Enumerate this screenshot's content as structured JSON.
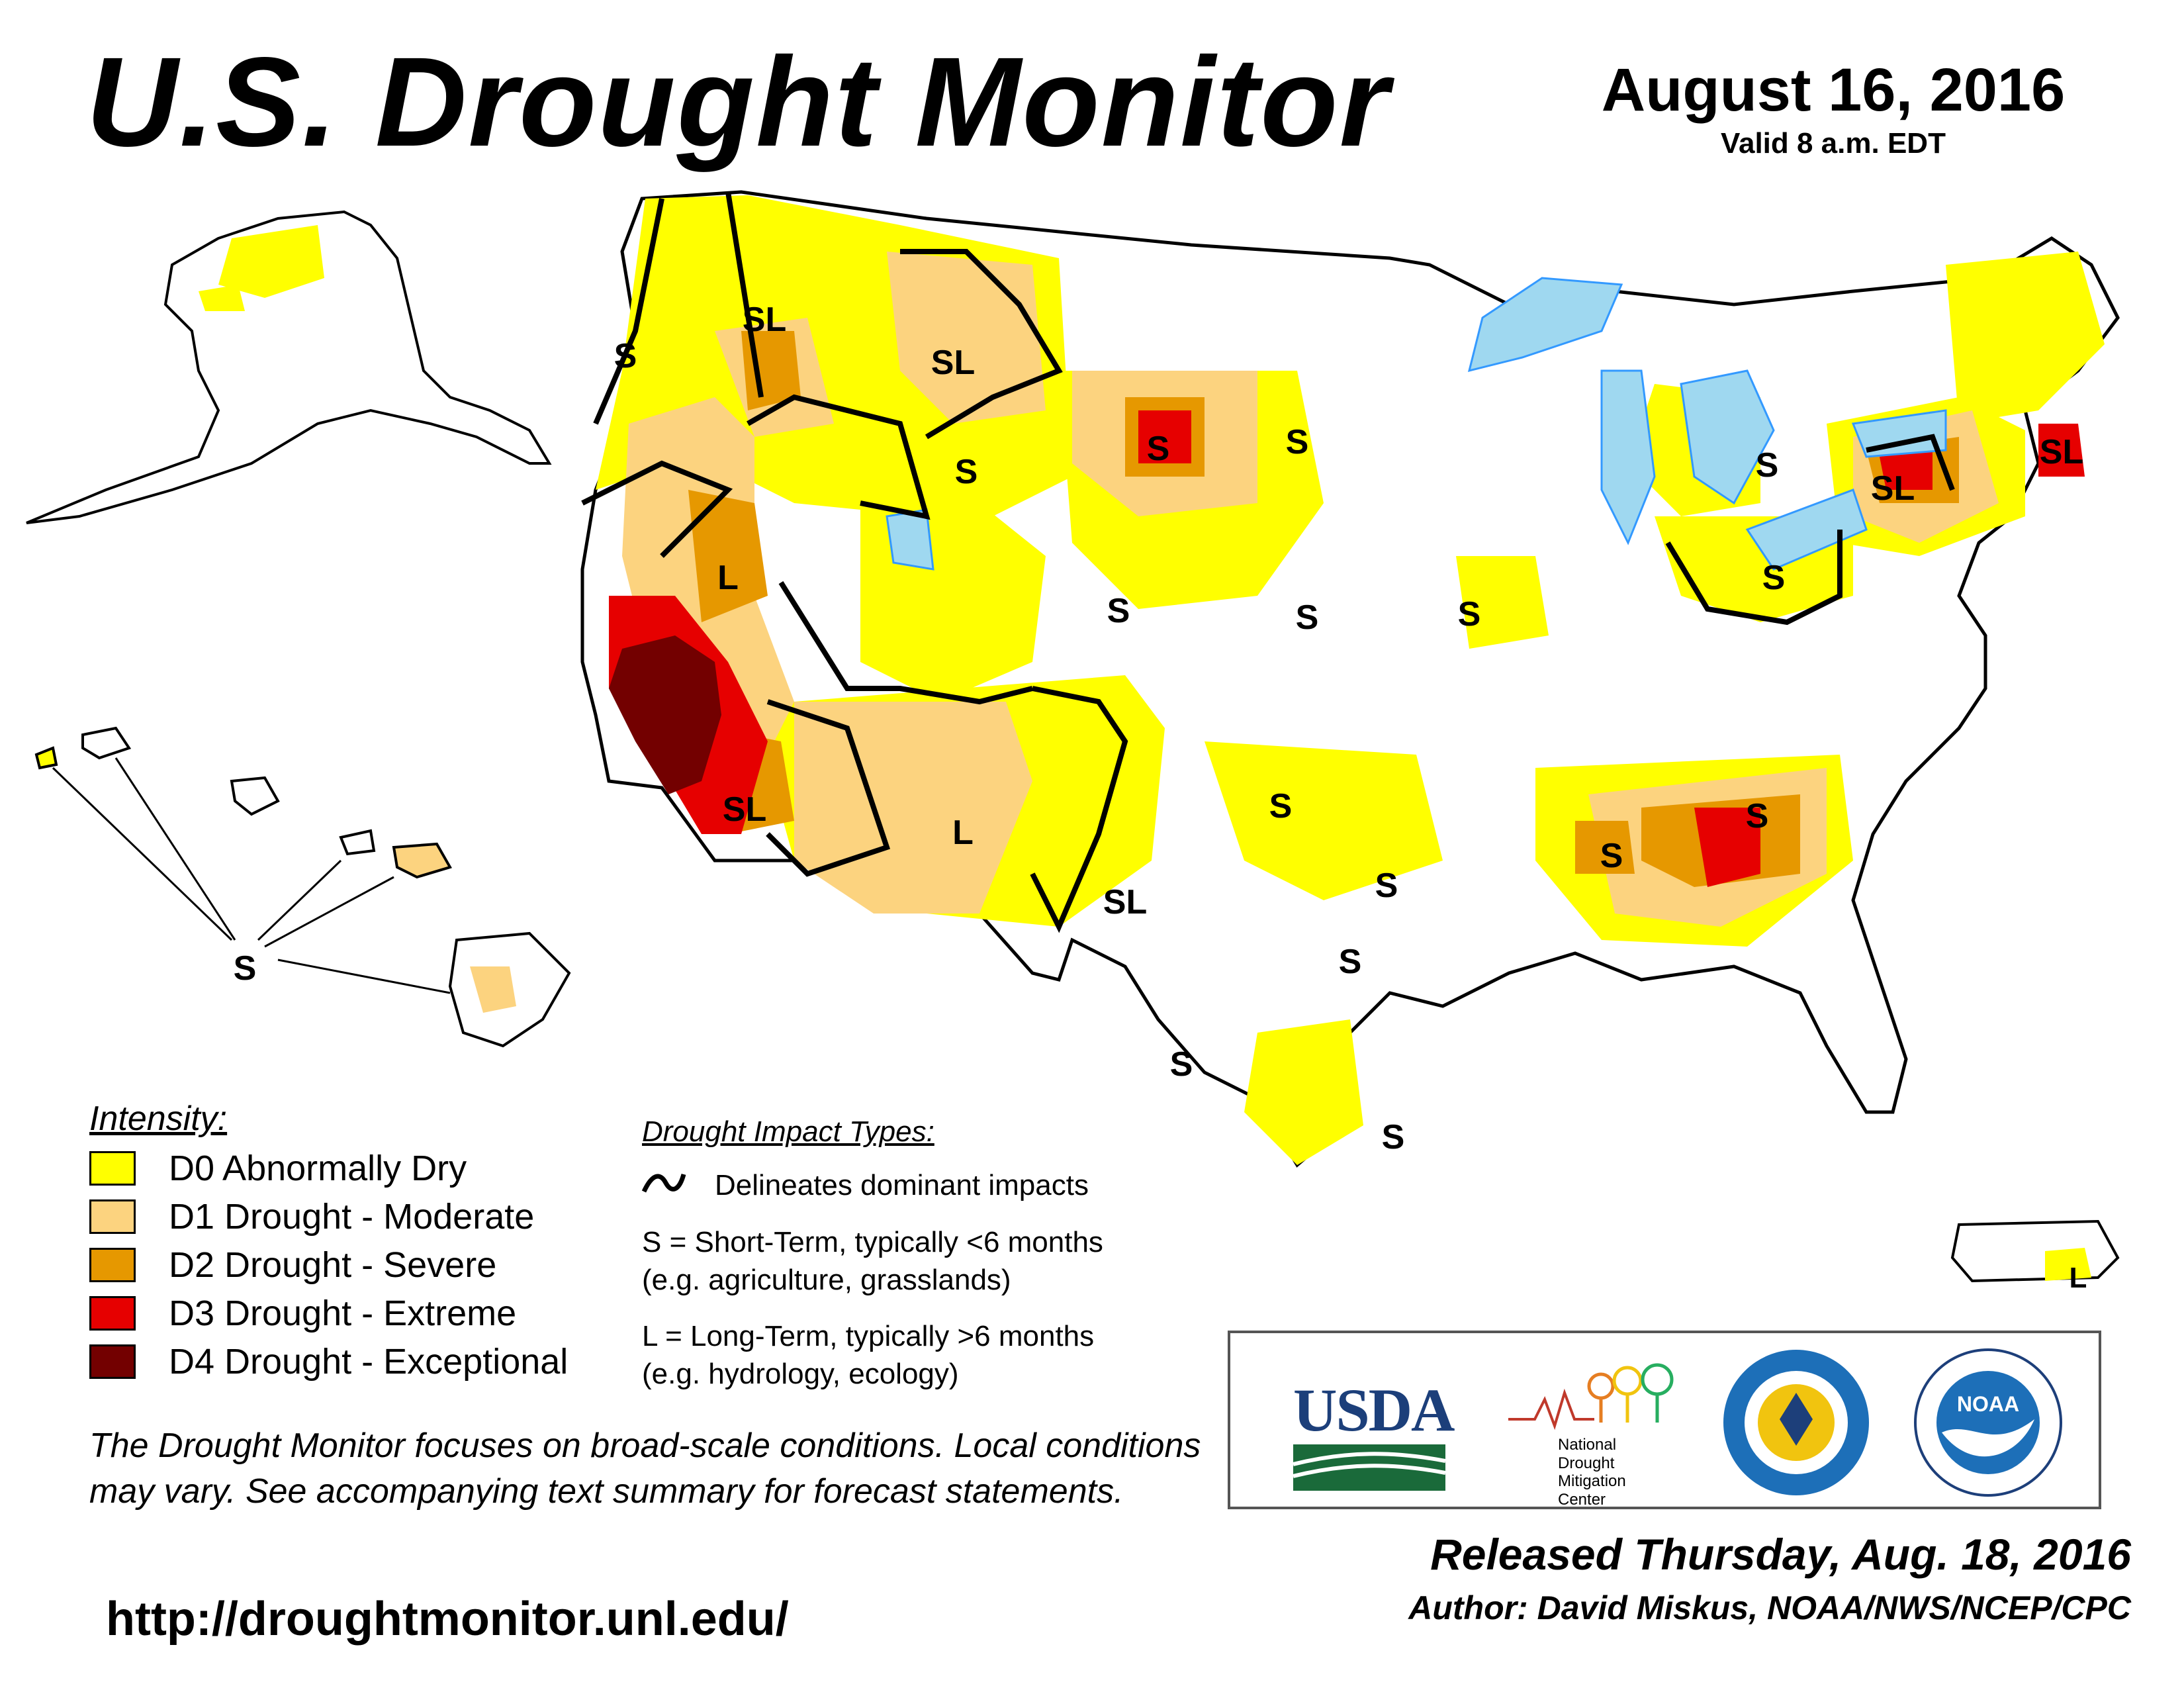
{
  "header": {
    "title": "U.S. Drought Monitor",
    "date": "August 16, 2016",
    "valid": "Valid 8 a.m. EDT"
  },
  "legend": {
    "intensity_title": "Intensity:",
    "items": [
      {
        "label": "D0 Abnormally Dry",
        "color": "#ffff00"
      },
      {
        "label": "D1 Drought - Moderate",
        "color": "#fcd37f"
      },
      {
        "label": "D2 Drought - Severe",
        "color": "#e69800"
      },
      {
        "label": "D3 Drought - Extreme",
        "color": "#e60000"
      },
      {
        "label": "D4 Drought - Exceptional",
        "color": "#730000"
      }
    ]
  },
  "impacts": {
    "title": "Drought Impact Types:",
    "delineates": "Delineates dominant impacts",
    "short_term": "S = Short-Term, typically <6 months",
    "short_term_examples": "(e.g. agriculture, grasslands)",
    "long_term": "L = Long-Term, typically >6 months",
    "long_term_examples": "(e.g. hydrology, ecology)"
  },
  "map_labels": {
    "s": "S",
    "l": "L",
    "sl": "SL"
  },
  "logos": {
    "usda": "USDA",
    "ndmc_line1": "National",
    "ndmc_line2": "Drought",
    "ndmc_line3": "Mitigation",
    "ndmc_line4": "Center",
    "noaa": "NOAA"
  },
  "note": "The Drought Monitor focuses on broad-scale conditions. Local conditions may vary. See accompanying text summary for forecast statements.",
  "url": "http://droughtmonitor.unl.edu/",
  "released": "Released Thursday, Aug. 18, 2016",
  "author": "Author: David Miskus, NOAA/NWS/NCEP/CPC",
  "colors": {
    "water": "#9fd8f0",
    "river": "#3399ff",
    "boundary": "#000000"
  }
}
